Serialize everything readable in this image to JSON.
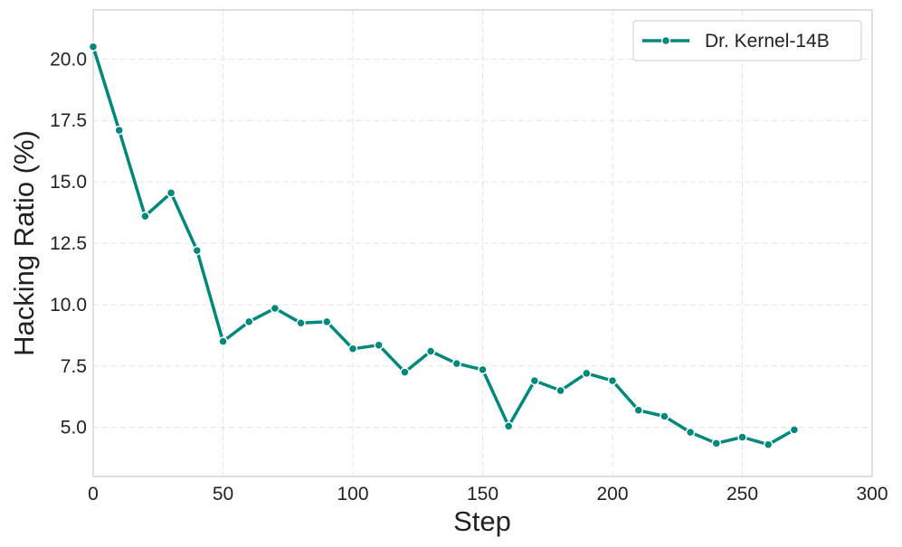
{
  "chart_data": {
    "type": "line",
    "title": "",
    "xlabel": "Step",
    "ylabel": "Hacking Ratio (%)",
    "xlim": [
      0,
      300
    ],
    "ylim": [
      3.0,
      22.0
    ],
    "x_ticks": [
      0,
      50,
      100,
      150,
      200,
      250,
      300
    ],
    "y_ticks": [
      5.0,
      7.5,
      10.0,
      12.5,
      15.0,
      17.5,
      20.0
    ],
    "x_tick_labels": [
      "0",
      "50",
      "100",
      "150",
      "200",
      "250",
      "300"
    ],
    "y_tick_labels": [
      "5.0",
      "7.5",
      "10.0",
      "12.5",
      "15.0",
      "17.5",
      "20.0"
    ],
    "grid": true,
    "legend_position": "top-right",
    "series": [
      {
        "name": "Dr. Kernel-14B",
        "color": "#00897b",
        "x": [
          0,
          10,
          20,
          30,
          40,
          50,
          60,
          70,
          80,
          90,
          100,
          110,
          120,
          130,
          140,
          150,
          160,
          170,
          180,
          190,
          200,
          210,
          220,
          230,
          240,
          250,
          260,
          270
        ],
        "values": [
          20.5,
          17.1,
          13.6,
          14.55,
          12.2,
          8.5,
          9.3,
          9.85,
          9.25,
          9.3,
          8.2,
          8.35,
          7.25,
          8.1,
          7.6,
          7.35,
          5.05,
          6.9,
          6.5,
          7.2,
          6.9,
          5.7,
          5.45,
          4.8,
          4.35,
          4.6,
          4.3,
          4.9
        ]
      }
    ]
  }
}
